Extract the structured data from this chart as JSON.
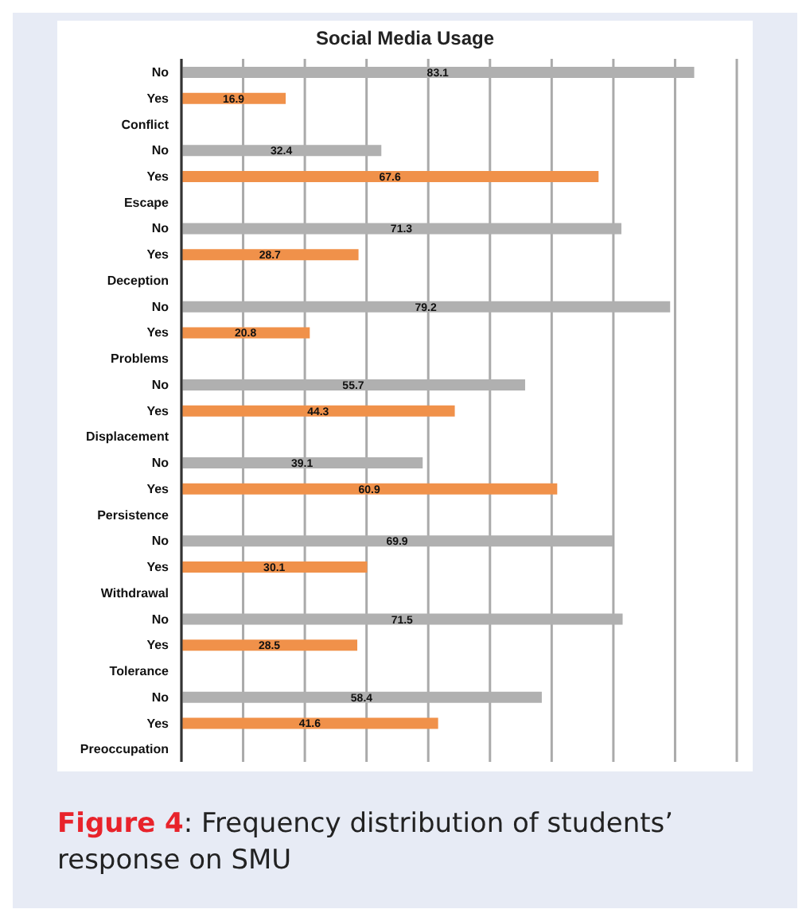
{
  "chart_data": {
    "type": "bar",
    "orientation": "horizontal",
    "title": "Social Media Usage",
    "categories": [
      "No",
      "Yes",
      "Conflict",
      "No",
      "Yes",
      "Escape",
      "No",
      "Yes",
      "Deception",
      "No",
      "Yes",
      "Problems",
      "No",
      "Yes",
      "Displacement",
      "No",
      "Yes",
      "Persistence",
      "No",
      "Yes",
      "Withdrawal",
      "No",
      "Yes",
      "Tolerance",
      "No",
      "Yes",
      "Preoccupation"
    ],
    "values": [
      83.1,
      16.9,
      null,
      32.4,
      67.6,
      null,
      71.3,
      28.7,
      null,
      79.2,
      20.8,
      null,
      55.7,
      44.3,
      null,
      39.1,
      60.9,
      null,
      69.9,
      30.1,
      null,
      71.5,
      28.5,
      null,
      58.4,
      41.6,
      null
    ],
    "colors": [
      "#b0b0b0",
      "#f0914a",
      null,
      "#b0b0b0",
      "#f0914a",
      null,
      "#b0b0b0",
      "#f0914a",
      null,
      "#b0b0b0",
      "#f0914a",
      null,
      "#b0b0b0",
      "#f0914a",
      null,
      "#b0b0b0",
      "#f0914a",
      null,
      "#b0b0b0",
      "#f0914a",
      null,
      "#b0b0b0",
      "#f0914a",
      null,
      "#b0b0b0",
      "#f0914a",
      null
    ],
    "tick_labels": "y",
    "grid": "x",
    "data_labels": true,
    "annotations": [
      "Figure 4: Frequency distribution of students’ response on SMU"
    ]
  }
}
